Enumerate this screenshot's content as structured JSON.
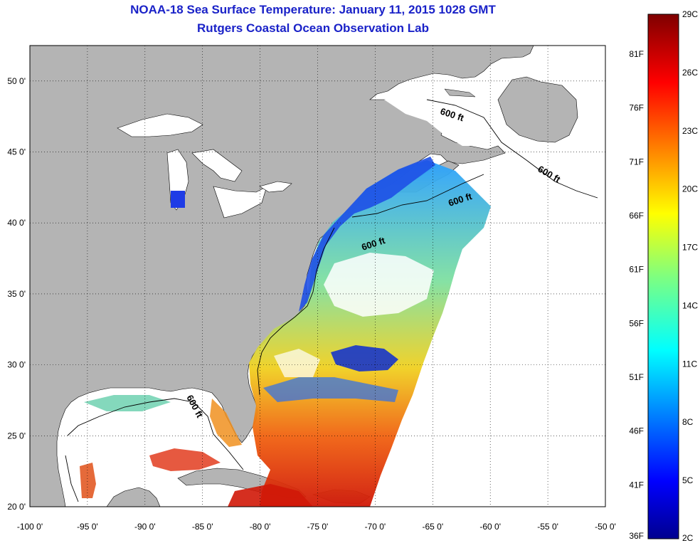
{
  "title": {
    "line1": "NOAA-18 Sea Surface Temperature:  January 11, 2015 1028 GMT",
    "line2": "Rutgers Coastal Ocean Observation Lab"
  },
  "map": {
    "lon_ticks": [
      "-100 0'",
      "-95 0'",
      "-90 0'",
      "-85 0'",
      "-80 0'",
      "-75 0'",
      "-70 0'",
      "-65 0'",
      "-60 0'",
      "-55 0'",
      "-50 0'"
    ],
    "lat_ticks": [
      "50 0'",
      "45 0'",
      "40 0'",
      "35 0'",
      "30 0'",
      "25 0'",
      "20 0'"
    ],
    "lon_range": [
      -100,
      -50
    ],
    "lat_range": [
      20,
      52.5
    ],
    "land_color": "#b4b4b4",
    "depth_labels": [
      "600 ft",
      "600 ft",
      "600 ft",
      "600 ft",
      "600 ft"
    ]
  },
  "colorbar": {
    "fahrenheit": [
      "36F",
      "41F",
      "46F",
      "51F",
      "56F",
      "61F",
      "66F",
      "71F",
      "76F",
      "81F"
    ],
    "celsius": [
      "2C",
      "5C",
      "8C",
      "11C",
      "14C",
      "17C",
      "20C",
      "23C",
      "26C",
      "29C"
    ],
    "colormap": "jet"
  }
}
